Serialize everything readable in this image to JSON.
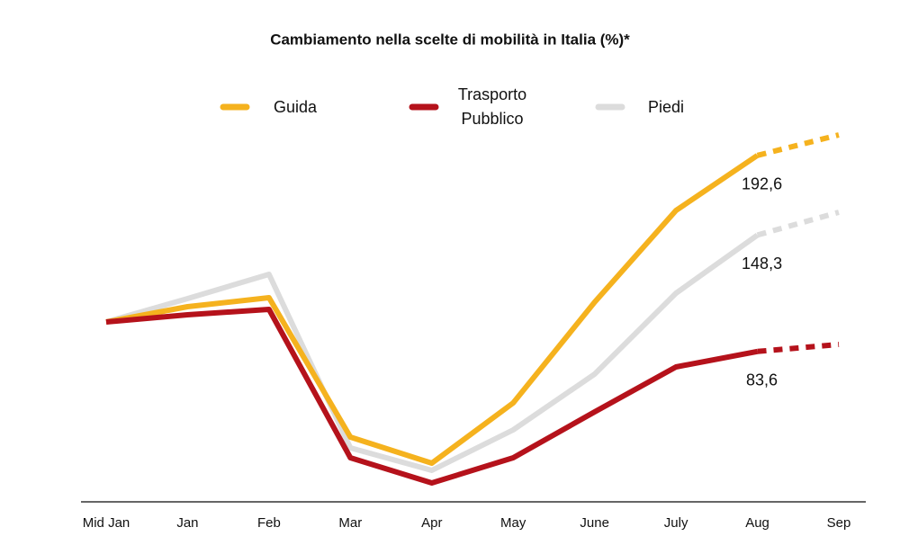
{
  "chart_data": {
    "type": "line",
    "title": "Cambiamento nella scelte di mobilità in Italia (%)*",
    "categories": [
      "Mid Jan",
      "Jan",
      "Feb",
      "Mar",
      "Apr",
      "May",
      "June",
      "July",
      "Aug",
      "Sep"
    ],
    "dashed_after": "Aug",
    "ylim": [
      0,
      210
    ],
    "series": [
      {
        "name": "Guida",
        "color": "#f5b21e",
        "values": [
          100,
          108.5,
          113.5,
          36,
          21.5,
          55,
          111,
          162,
          192.6,
          204
        ],
        "value_labels": [
          null,
          null,
          null,
          null,
          null,
          null,
          null,
          null,
          "192,6",
          null
        ]
      },
      {
        "name": "Trasporto Pubblico",
        "color": "#b5121b",
        "values": [
          100,
          104,
          107,
          24.5,
          10.5,
          24.5,
          50,
          75,
          83.6,
          87.5
        ],
        "value_labels": [
          null,
          null,
          null,
          null,
          null,
          null,
          null,
          null,
          "83,6",
          null
        ]
      },
      {
        "name": "Piedi",
        "color": "#dcdcdc",
        "values": [
          100,
          113,
          126.5,
          30,
          17.5,
          40,
          71,
          116,
          148.3,
          161
        ],
        "value_labels": [
          null,
          null,
          null,
          null,
          null,
          null,
          null,
          null,
          "148,3",
          null
        ]
      }
    ]
  }
}
